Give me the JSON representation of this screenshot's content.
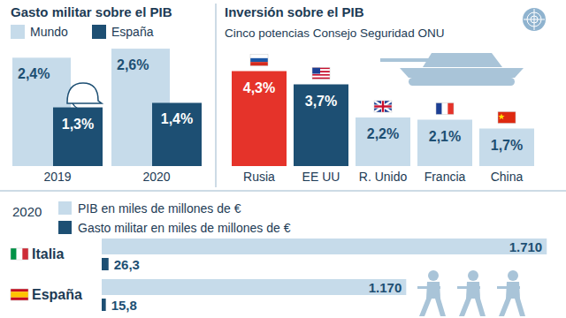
{
  "chart_data": [
    {
      "type": "bar",
      "title": "Gasto militar sobre el PIB",
      "categories": [
        "2019",
        "2020"
      ],
      "series": [
        {
          "name": "Mundo",
          "color": "#c6dbea",
          "values": [
            2.4,
            2.6
          ],
          "value_labels": [
            "2,4%",
            "2,6%"
          ]
        },
        {
          "name": "España",
          "color": "#1d4f73",
          "values": [
            1.3,
            1.4
          ],
          "value_labels": [
            "1,3%",
            "1,4%"
          ]
        }
      ],
      "ylim": [
        0,
        2.7
      ],
      "tick_labels": "x",
      "data_labels": true,
      "legend": "top"
    },
    {
      "type": "bar",
      "title": "Inversión sobre el PIB",
      "subtitle": "Cinco potencias Consejo Seguridad ONU",
      "categories": [
        "Rusia",
        "EE UU",
        "R. Unido",
        "Francia",
        "China"
      ],
      "values": [
        4.3,
        3.7,
        2.2,
        2.1,
        1.7
      ],
      "value_labels": [
        "4,3%",
        "3,7%",
        "2,2%",
        "2,1%",
        "1,7%"
      ],
      "colors": [
        "#e5332a",
        "#1d4f73",
        "#c6dbea",
        "#c6dbea",
        "#c6dbea"
      ],
      "ylim": [
        0,
        6
      ],
      "tick_labels": "x",
      "data_labels": true
    },
    {
      "type": "bar",
      "orientation": "horizontal",
      "title": "2020",
      "categories": [
        "Italia",
        "España"
      ],
      "series": [
        {
          "name": "PIB en miles de millones de €",
          "color": "#c6dbea",
          "values": [
            1710,
            1170
          ],
          "value_labels": [
            "1.710",
            "1.170"
          ]
        },
        {
          "name": "Gasto militar en miles de millones de €",
          "color": "#1d4f73",
          "values": [
            26.3,
            15.8
          ],
          "value_labels": [
            "26,3",
            "15,8"
          ]
        }
      ],
      "xlim": [
        0,
        1750
      ],
      "tick_labels": "y",
      "data_labels": true,
      "legend": "top"
    }
  ]
}
